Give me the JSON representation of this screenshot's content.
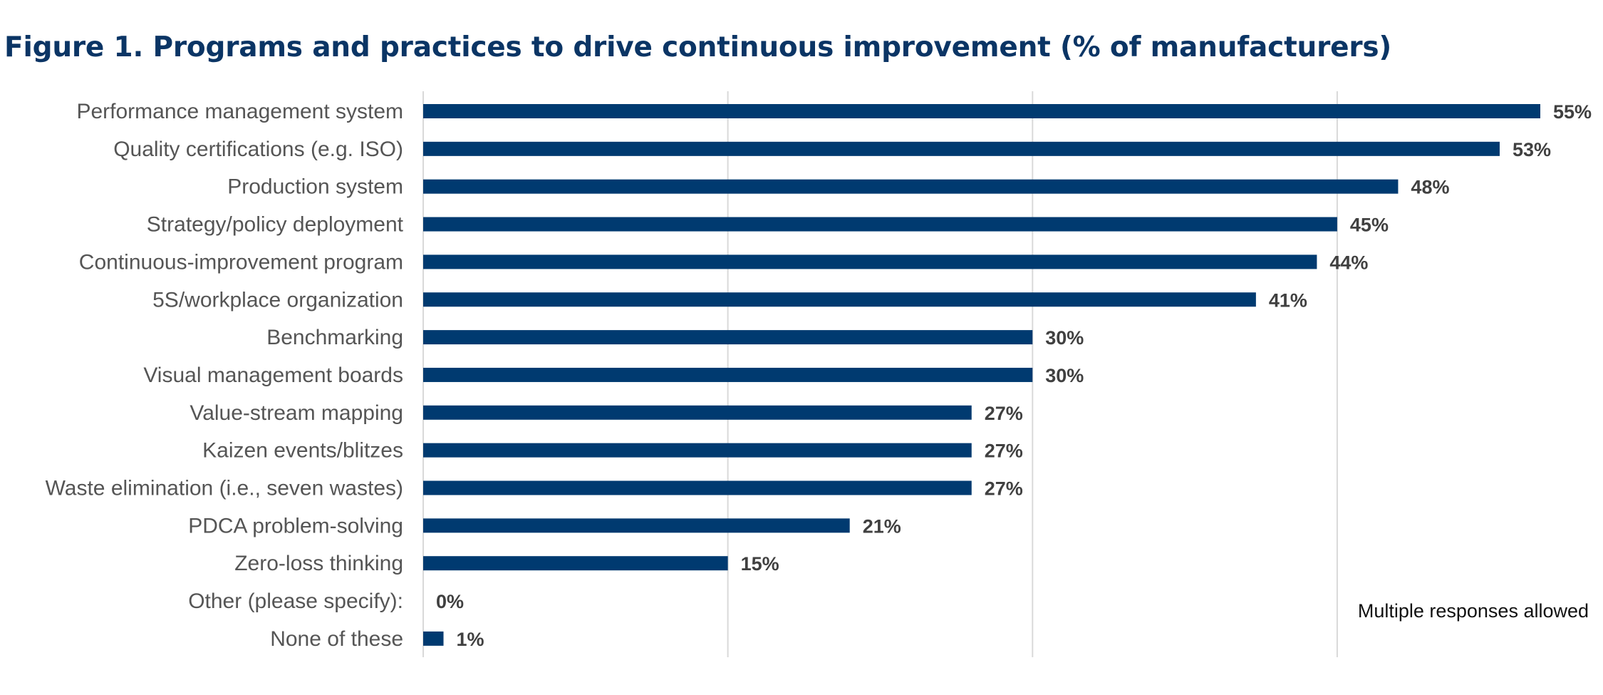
{
  "chart_data": {
    "type": "bar",
    "orientation": "horizontal",
    "title": "Figure 1. Programs and practices to drive continuous improvement (% of manufacturers)",
    "categories": [
      "Performance management system",
      "Quality certifications (e.g. ISO)",
      "Production system",
      "Strategy/policy deployment",
      "Continuous-improvement program",
      "5S/workplace organization",
      "Benchmarking",
      "Visual management boards",
      "Value-stream mapping",
      "Kaizen events/blitzes",
      "Waste elimination (i.e., seven wastes)",
      "PDCA problem-solving",
      "Zero-loss thinking",
      "Other (please specify):",
      "None of these"
    ],
    "values": [
      55,
      53,
      48,
      45,
      44,
      41,
      30,
      30,
      27,
      27,
      27,
      21,
      15,
      0,
      1
    ],
    "value_labels": [
      "55%",
      "53%",
      "48%",
      "45%",
      "44%",
      "41%",
      "30%",
      "30%",
      "27%",
      "27%",
      "27%",
      "21%",
      "15%",
      "0%",
      "1%"
    ],
    "xlim": [
      0,
      55
    ],
    "gridlines": [
      0,
      15,
      30,
      45
    ],
    "grid": true,
    "xlabel": "",
    "ylabel": "",
    "annotation": "Multiple responses allowed",
    "bar_color": "#003a70",
    "grid_color": "#d9d9d9"
  }
}
